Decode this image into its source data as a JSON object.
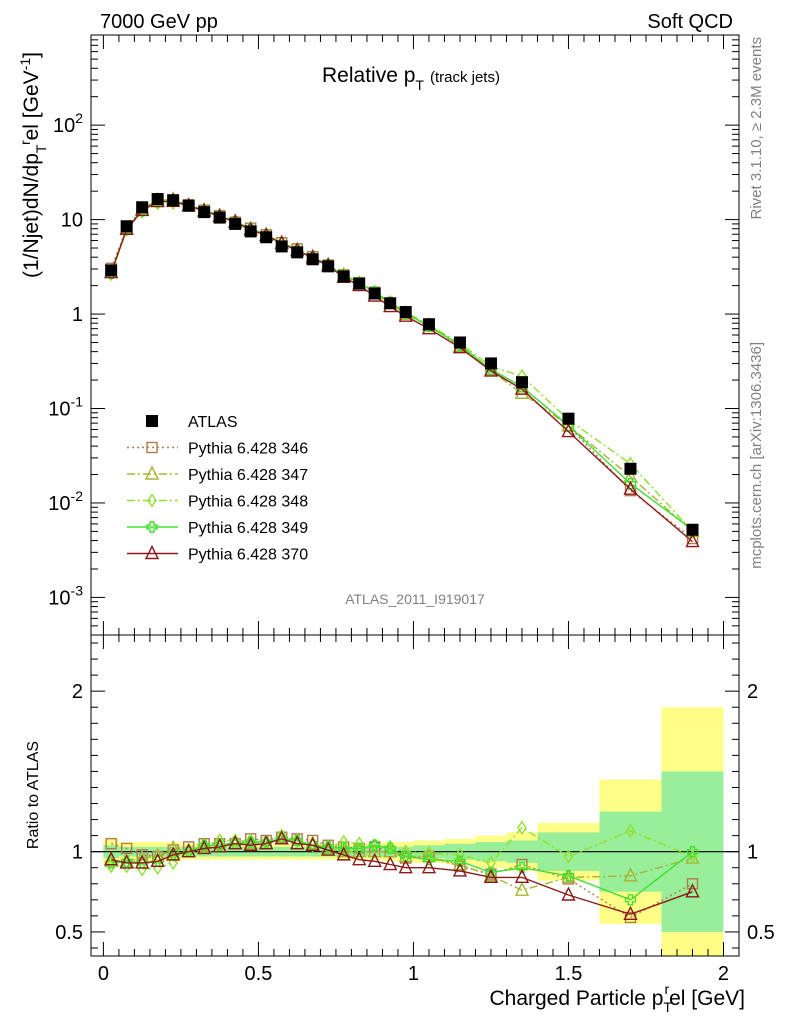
{
  "header": {
    "left": "7000 GeV pp",
    "right": "Soft QCD"
  },
  "side_texts": {
    "top": "Rivet 3.1.10, ≥ 2.3M events",
    "bottom": "mcplots.cern.ch [arXiv:1306.3436]"
  },
  "chart_data": [
    {
      "type": "line",
      "title": "Relative p_T (track jets)",
      "title_main": "Relative p",
      "title_sub": "T",
      "title_note": "(track jets)",
      "ylabel": "(1/Njet)dN/dp_T^rel [GeV^-1]",
      "yscale": "log",
      "ylim": [
        0.0004,
        900
      ],
      "xlim": [
        -0.04,
        2.05
      ],
      "ytick_labels": [
        "10^-3",
        "10^-2",
        "10^-1",
        "1",
        "10",
        "10^2"
      ],
      "watermark": "ATLAS_2011_I919017",
      "legend_position": "lower-left",
      "x": [
        0.025,
        0.075,
        0.125,
        0.175,
        0.225,
        0.275,
        0.325,
        0.375,
        0.425,
        0.475,
        0.525,
        0.575,
        0.625,
        0.675,
        0.725,
        0.775,
        0.825,
        0.875,
        0.925,
        0.975,
        1.05,
        1.15,
        1.25,
        1.35,
        1.5,
        1.7,
        1.9
      ],
      "series": [
        {
          "name": "ATLAS",
          "color": "#000000",
          "marker": "filled-square",
          "values": [
            2.9,
            8.5,
            13.5,
            16.5,
            16.0,
            14.0,
            12.0,
            10.5,
            9.0,
            7.5,
            6.5,
            5.2,
            4.5,
            3.8,
            3.2,
            2.5,
            2.1,
            1.65,
            1.3,
            1.05,
            0.78,
            0.5,
            0.3,
            0.19,
            0.078,
            0.023,
            0.0052
          ]
        },
        {
          "name": "Pythia 6.428 346",
          "color": "#b37a4c",
          "marker": "open-square",
          "line": "dotted",
          "values": [
            3.05,
            8.2,
            13.2,
            16.0,
            16.2,
            14.4,
            12.6,
            11.0,
            9.4,
            8.1,
            6.9,
            5.7,
            4.9,
            4.05,
            3.3,
            2.6,
            2.15,
            1.7,
            1.3,
            1.0,
            0.76,
            0.45,
            0.26,
            0.17,
            0.065,
            0.0135,
            0.0042
          ]
        },
        {
          "name": "Pythia 6.428 347",
          "color": "#a5b535",
          "marker": "open-triangle",
          "line": "dashdot",
          "values": [
            2.75,
            8.0,
            13.0,
            16.0,
            16.3,
            14.0,
            12.4,
            10.8,
            9.4,
            7.9,
            6.8,
            5.6,
            4.7,
            4.0,
            3.3,
            2.5,
            2.1,
            1.65,
            1.3,
            1.0,
            0.76,
            0.46,
            0.25,
            0.145,
            0.066,
            0.019,
            0.005
          ]
        },
        {
          "name": "Pythia 6.428 348",
          "color": "#90e030",
          "marker": "open-diamond",
          "line": "dashdot",
          "values": [
            2.65,
            7.8,
            12.1,
            14.9,
            15.0,
            14.2,
            12.5,
            11.2,
            9.6,
            8.0,
            6.9,
            5.7,
            4.8,
            3.95,
            3.3,
            2.65,
            2.15,
            1.72,
            1.34,
            1.05,
            0.77,
            0.49,
            0.28,
            0.22,
            0.076,
            0.026,
            0.005
          ]
        },
        {
          "name": "Pythia 6.428 349",
          "color": "#40e030",
          "marker": "open-cross",
          "line": "solid",
          "values": [
            2.7,
            8.0,
            12.5,
            15.5,
            15.6,
            14.0,
            12.5,
            10.9,
            9.5,
            8.0,
            6.9,
            5.6,
            4.8,
            3.95,
            3.3,
            2.55,
            2.15,
            1.72,
            1.33,
            1.02,
            0.74,
            0.47,
            0.26,
            0.17,
            0.066,
            0.016,
            0.0052
          ]
        },
        {
          "name": "Pythia 6.428 370",
          "color": "#8b1a1a",
          "marker": "open-triangle",
          "line": "solid",
          "values": [
            2.75,
            7.9,
            12.5,
            15.5,
            15.6,
            14.0,
            12.3,
            10.8,
            9.4,
            7.8,
            6.8,
            5.6,
            4.7,
            3.95,
            3.25,
            2.45,
            2.0,
            1.55,
            1.2,
            0.95,
            0.7,
            0.44,
            0.25,
            0.16,
            0.057,
            0.014,
            0.0039
          ]
        }
      ]
    },
    {
      "type": "line",
      "ylabel": "Ratio to ATLAS",
      "xlabel": "Charged Particle p_T^rel [GeV]",
      "xlabel_main": "Charged Particle p",
      "xlabel_sub": "T",
      "xlabel_sup": "r",
      "xlabel_tail": "el [GeV]",
      "ylim": [
        0.35,
        2.35
      ],
      "xlim": [
        -0.04,
        2.05
      ],
      "ytick_labels": [
        "0.5",
        "1",
        "2"
      ],
      "xtick_labels": [
        "0",
        "0.5",
        "1",
        "1.5",
        "2"
      ],
      "bands": {
        "bin_edges": [
          0,
          0.05,
          0.1,
          0.15,
          0.2,
          0.25,
          0.3,
          0.35,
          0.4,
          0.45,
          0.5,
          0.55,
          0.6,
          0.65,
          0.7,
          0.75,
          0.8,
          0.85,
          0.9,
          0.95,
          1.0,
          1.1,
          1.2,
          1.3,
          1.4,
          1.6,
          1.8,
          2.0
        ],
        "stat_halfwidth": [
          0.04,
          0.03,
          0.03,
          0.03,
          0.03,
          0.03,
          0.03,
          0.03,
          0.03,
          0.03,
          0.03,
          0.03,
          0.03,
          0.03,
          0.03,
          0.03,
          0.03,
          0.03,
          0.03,
          0.03,
          0.04,
          0.05,
          0.06,
          0.07,
          0.12,
          0.25,
          0.5
        ],
        "total_halfwidth": [
          0.08,
          0.06,
          0.06,
          0.06,
          0.06,
          0.05,
          0.05,
          0.05,
          0.05,
          0.05,
          0.05,
          0.05,
          0.05,
          0.05,
          0.05,
          0.05,
          0.05,
          0.05,
          0.06,
          0.06,
          0.07,
          0.08,
          0.1,
          0.12,
          0.18,
          0.45,
          0.9
        ]
      },
      "series": [
        {
          "name": "Pythia 6.428 346",
          "values": [
            1.05,
            1.02,
            0.98,
            0.97,
            1.01,
            1.03,
            1.05,
            1.05,
            1.05,
            1.08,
            1.07,
            1.09,
            1.08,
            1.07,
            1.04,
            1.03,
            1.02,
            1.03,
            1.0,
            0.96,
            0.97,
            0.91,
            0.86,
            0.92,
            0.83,
            0.59,
            0.8
          ]
        },
        {
          "name": "Pythia 6.428 347",
          "values": [
            0.94,
            0.94,
            0.96,
            0.97,
            1.02,
            1.0,
            1.03,
            1.03,
            1.05,
            1.05,
            1.05,
            1.08,
            1.05,
            1.05,
            1.02,
            1.0,
            1.0,
            1.0,
            1.0,
            0.97,
            0.97,
            0.92,
            0.85,
            0.76,
            0.84,
            0.85,
            0.96
          ]
        },
        {
          "name": "Pythia 6.428 348",
          "values": [
            0.91,
            0.91,
            0.89,
            0.9,
            0.93,
            1.01,
            1.04,
            1.07,
            1.07,
            1.07,
            1.06,
            1.1,
            1.07,
            1.04,
            1.03,
            1.06,
            1.05,
            1.04,
            1.03,
            1.0,
            0.99,
            0.98,
            0.93,
            1.15,
            0.97,
            1.13,
            0.97
          ]
        },
        {
          "name": "Pythia 6.428 349",
          "values": [
            0.93,
            0.94,
            0.93,
            0.94,
            0.98,
            1.0,
            1.04,
            1.04,
            1.05,
            1.06,
            1.06,
            1.08,
            1.07,
            1.04,
            1.03,
            1.02,
            1.02,
            1.04,
            1.02,
            0.97,
            0.95,
            0.94,
            0.87,
            0.9,
            0.85,
            0.7,
            1.0
          ]
        },
        {
          "name": "Pythia 6.428 370",
          "values": [
            0.95,
            0.93,
            0.93,
            0.94,
            0.98,
            1.0,
            1.02,
            1.03,
            1.05,
            1.04,
            1.05,
            1.08,
            1.05,
            1.04,
            1.01,
            0.98,
            0.95,
            0.94,
            0.92,
            0.9,
            0.9,
            0.88,
            0.84,
            0.84,
            0.73,
            0.61,
            0.75
          ]
        }
      ]
    }
  ]
}
